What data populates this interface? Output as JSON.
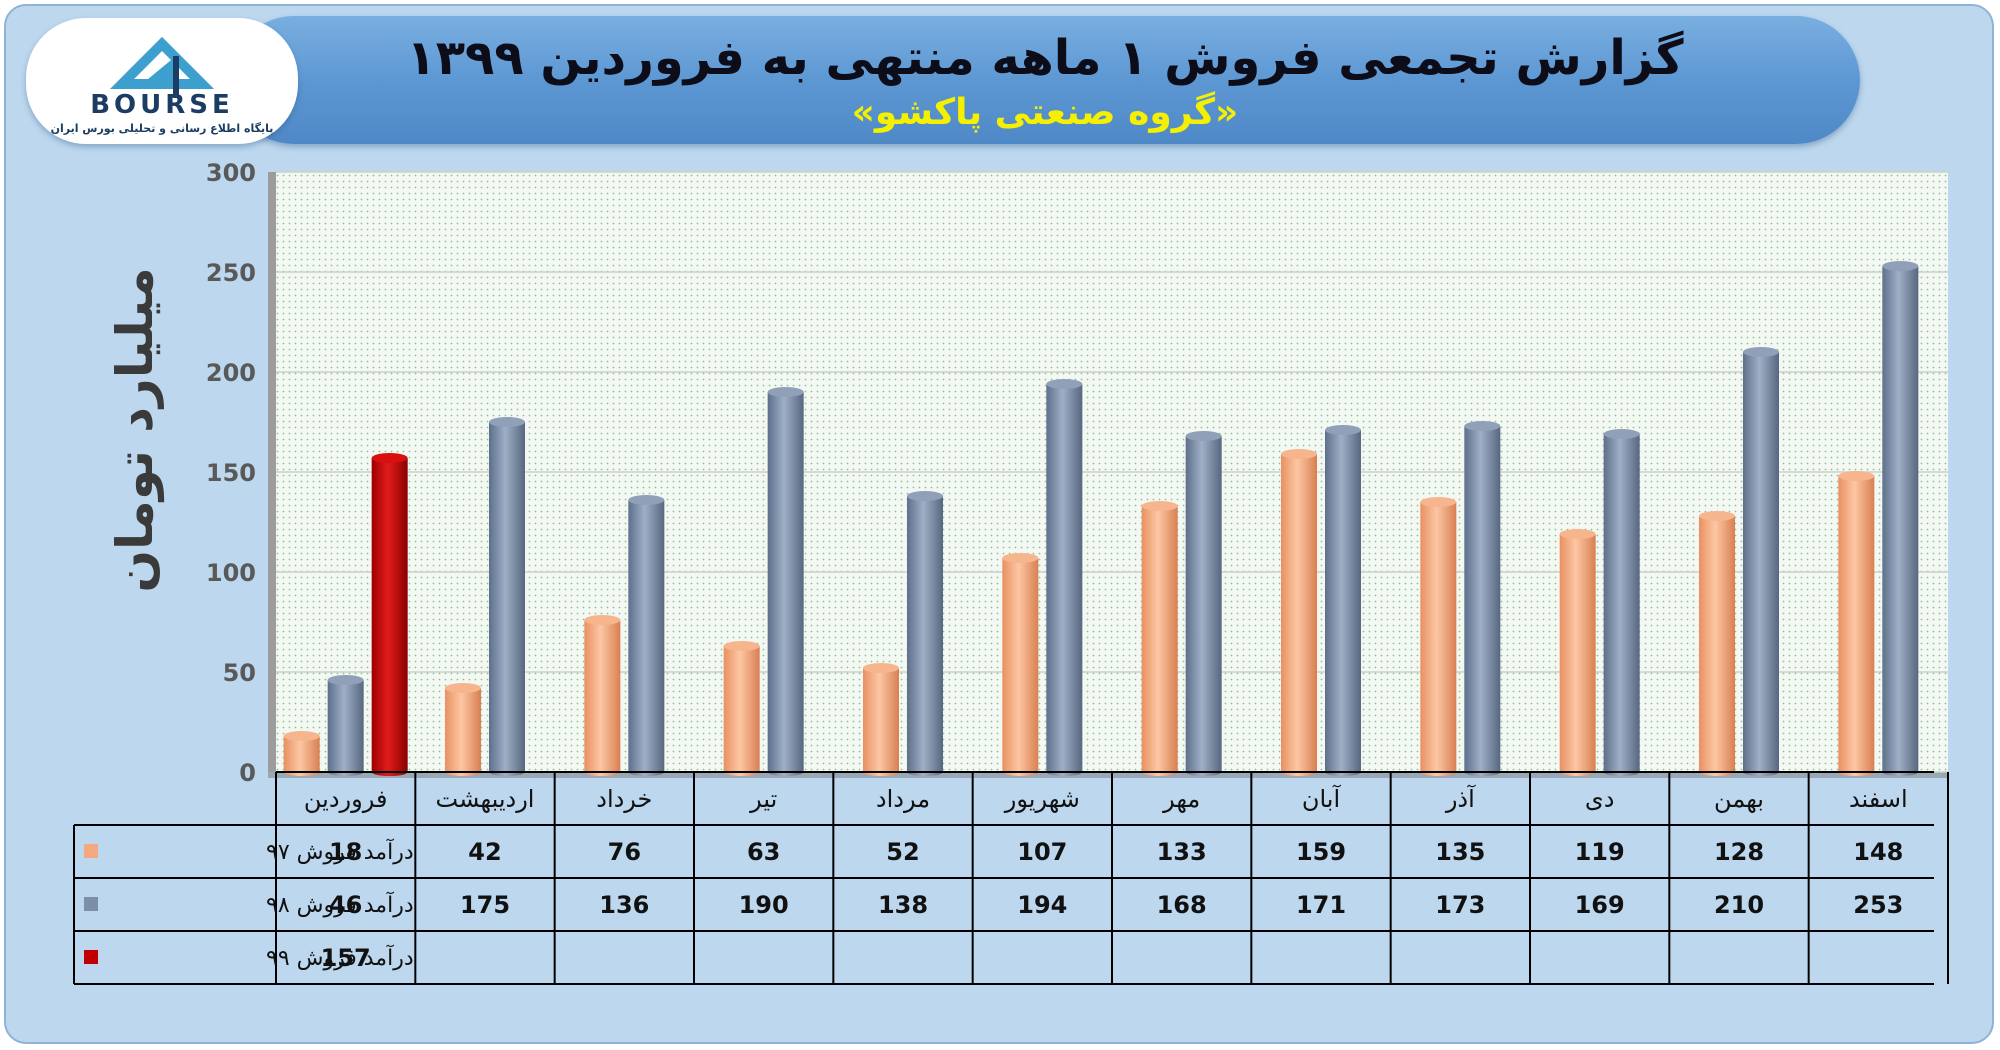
{
  "header": {
    "title": "گزارش تجمعی فروش ۱ ماهه منتهی به فروردین ۱۳۹۹",
    "subtitle": "«گروه صنعتی پاکشو»"
  },
  "logo": {
    "text": "BOURSE",
    "tagline": "پایگاه اطلاع رسانی و تحلیلی بورس ایران",
    "colors": {
      "mark": "#3d9fcd",
      "text": "#1b3c63"
    }
  },
  "chart_data": {
    "type": "bar",
    "title": "گزارش تجمعی فروش ۱ ماهه منتهی به فروردین ۱۳۹۹",
    "subtitle": "«گروه صنعتی پاکشو»",
    "ylabel": "میلیارد تومان",
    "xlabel": "",
    "ylim": [
      0,
      300
    ],
    "yticks": [
      0,
      50,
      100,
      150,
      200,
      250,
      300
    ],
    "grid": true,
    "categories": [
      "فروردین",
      "اردیبهشت",
      "خرداد",
      "تیر",
      "مرداد",
      "شهریور",
      "مهر",
      "آبان",
      "آذر",
      "دی",
      "بهمن",
      "اسفند"
    ],
    "series": [
      {
        "name": "درآمد فروش ۹۷",
        "color": "#f3a97f",
        "values": [
          18,
          42,
          76,
          63,
          52,
          107,
          133,
          159,
          135,
          119,
          128,
          148
        ]
      },
      {
        "name": "درآمد فروش ۹۸",
        "color": "#7d8ea8",
        "values": [
          46,
          175,
          136,
          190,
          138,
          194,
          168,
          171,
          173,
          169,
          210,
          253
        ]
      },
      {
        "name": "درآمد فروش ۹۹",
        "color": "#c00000",
        "values": [
          157,
          null,
          null,
          null,
          null,
          null,
          null,
          null,
          null,
          null,
          null,
          null
        ]
      }
    ],
    "legend_position": "data-table"
  }
}
